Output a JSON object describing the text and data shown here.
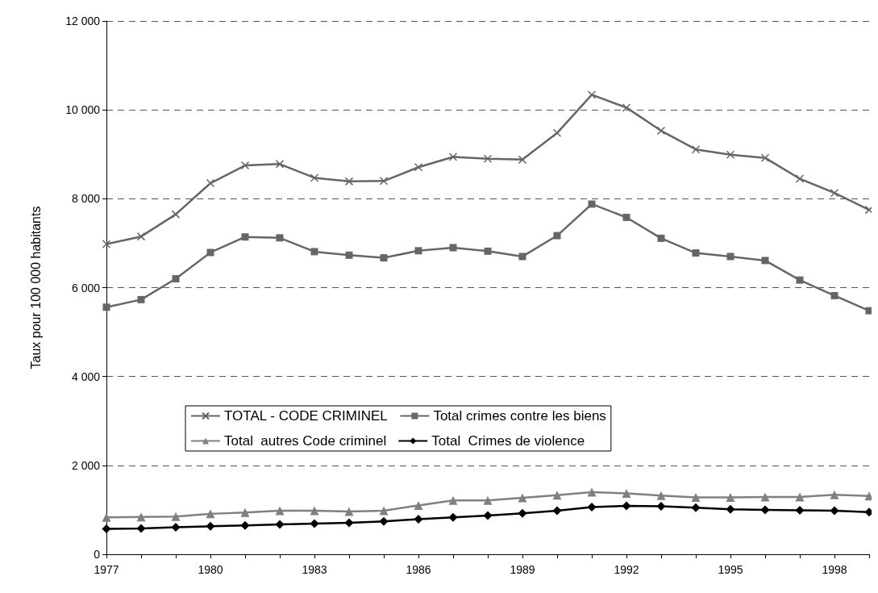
{
  "chart_data": {
    "type": "line",
    "ylabel": "Taux pour 100 000 habitants",
    "x": [
      1977,
      1978,
      1979,
      1980,
      1981,
      1982,
      1983,
      1984,
      1985,
      1986,
      1987,
      1988,
      1989,
      1990,
      1991,
      1992,
      1993,
      1994,
      1995,
      1996,
      1997,
      1998,
      1999
    ],
    "series": [
      {
        "name": "TOTAL - CODE CRIMINEL",
        "color": "#666666",
        "marker": "cross",
        "values": [
          6980,
          7150,
          7650,
          8350,
          8750,
          8780,
          8470,
          8390,
          8400,
          8710,
          8940,
          8900,
          8880,
          9480,
          10340,
          10050,
          9530,
          9110,
          8990,
          8920,
          8450,
          8130,
          7750
        ]
      },
      {
        "name": "Total crimes contre les biens",
        "color": "#666666",
        "marker": "square",
        "values": [
          5560,
          5730,
          6200,
          6790,
          7140,
          7120,
          6810,
          6730,
          6670,
          6830,
          6900,
          6820,
          6700,
          7170,
          7880,
          7580,
          7110,
          6780,
          6700,
          6610,
          6170,
          5820,
          5480
        ]
      },
      {
        "name": "Total  autres Code criminel",
        "color": "#808080",
        "marker": "triangle",
        "values": [
          830,
          840,
          850,
          910,
          940,
          980,
          980,
          960,
          980,
          1100,
          1210,
          1210,
          1270,
          1330,
          1400,
          1370,
          1320,
          1280,
          1280,
          1290,
          1290,
          1340,
          1310
        ]
      },
      {
        "name": "Total  Crimes de violence",
        "color": "#000000",
        "marker": "diamond",
        "values": [
          570,
          580,
          610,
          630,
          650,
          670,
          690,
          710,
          740,
          790,
          830,
          870,
          920,
          980,
          1060,
          1090,
          1080,
          1050,
          1010,
          1000,
          990,
          980,
          950
        ]
      }
    ],
    "xlim": [
      1977,
      1999
    ],
    "xticks": [
      1977,
      {
        "value": 1978,
        "label": null
      },
      {
        "value": 1979,
        "label": null
      },
      1980,
      {
        "value": 1981,
        "label": null
      },
      {
        "value": 1982,
        "label": null
      },
      1983,
      {
        "value": 1984,
        "label": null
      },
      {
        "value": 1985,
        "label": null
      },
      1986,
      {
        "value": 1987,
        "label": null
      },
      {
        "value": 1988,
        "label": null
      },
      1989,
      {
        "value": 1990,
        "label": null
      },
      {
        "value": 1991,
        "label": null
      },
      1992,
      {
        "value": 1993,
        "label": null
      },
      {
        "value": 1994,
        "label": null
      },
      1995,
      {
        "value": 1996,
        "label": null
      },
      {
        "value": 1997,
        "label": null
      },
      1998,
      {
        "value": 1999,
        "label": null
      }
    ],
    "ylim": [
      0,
      12000
    ],
    "yticks": [
      0,
      {
        "value": 2000,
        "label": "2 000"
      },
      {
        "value": 4000,
        "label": "4 000"
      },
      {
        "value": 6000,
        "label": "6 000"
      },
      {
        "value": 8000,
        "label": "8 000"
      },
      {
        "value": 10000,
        "label": "10 000"
      },
      {
        "value": 12000,
        "label": "12 000"
      }
    ],
    "grid": "y",
    "legend": "center left",
    "line_style": "solid"
  }
}
